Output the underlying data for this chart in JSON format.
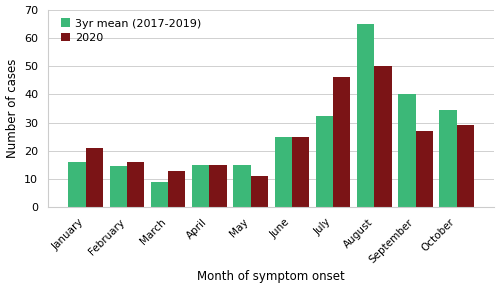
{
  "months": [
    "January",
    "February",
    "March",
    "April",
    "May",
    "June",
    "July",
    "August",
    "September",
    "October"
  ],
  "mean_3yr": [
    16,
    14.5,
    9,
    15,
    15,
    25,
    32.5,
    65,
    40,
    34.5
  ],
  "year_2020": [
    21,
    16,
    13,
    15,
    11,
    25,
    46,
    50,
    27,
    29
  ],
  "color_mean": "#3CB878",
  "color_2020": "#7B1416",
  "xlabel": "Month of symptom onset",
  "ylabel": "Number of cases",
  "ylim": [
    0,
    70
  ],
  "yticks": [
    0,
    10,
    20,
    30,
    40,
    50,
    60,
    70
  ],
  "legend_mean": "3yr mean (2017-2019)",
  "legend_2020": "2020",
  "bar_width": 0.42,
  "background_color": "#ffffff",
  "grid_color": "#d0d0d0",
  "spine_color": "#cccccc"
}
